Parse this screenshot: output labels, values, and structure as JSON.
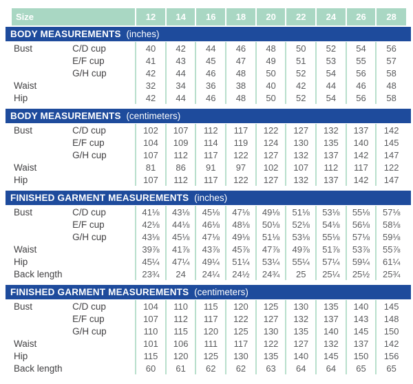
{
  "header": {
    "size_label": "Size",
    "sizes": [
      "12",
      "14",
      "16",
      "18",
      "20",
      "22",
      "24",
      "26",
      "28"
    ]
  },
  "sections": [
    {
      "title": "BODY MEASUREMENTS",
      "unit": "(inches)",
      "rows": [
        {
          "label": "Bust",
          "cup": "C/D cup",
          "values": [
            "40",
            "42",
            "44",
            "46",
            "48",
            "50",
            "52",
            "54",
            "56"
          ]
        },
        {
          "label": "",
          "cup": "E/F cup",
          "values": [
            "41",
            "43",
            "45",
            "47",
            "49",
            "51",
            "53",
            "55",
            "57"
          ]
        },
        {
          "label": "",
          "cup": "G/H cup",
          "values": [
            "42",
            "44",
            "46",
            "48",
            "50",
            "52",
            "54",
            "56",
            "58"
          ]
        },
        {
          "label": "Waist",
          "cup": "",
          "values": [
            "32",
            "34",
            "36",
            "38",
            "40",
            "42",
            "44",
            "46",
            "48"
          ]
        },
        {
          "label": "Hip",
          "cup": "",
          "values": [
            "42",
            "44",
            "46",
            "48",
            "50",
            "52",
            "54",
            "56",
            "58"
          ]
        }
      ]
    },
    {
      "title": "BODY MEASUREMENTS",
      "unit": "(centimeters)",
      "rows": [
        {
          "label": "Bust",
          "cup": "C/D cup",
          "values": [
            "102",
            "107",
            "112",
            "117",
            "122",
            "127",
            "132",
            "137",
            "142"
          ]
        },
        {
          "label": "",
          "cup": "E/F cup",
          "values": [
            "104",
            "109",
            "114",
            "119",
            "124",
            "130",
            "135",
            "140",
            "145"
          ]
        },
        {
          "label": "",
          "cup": "G/H cup",
          "values": [
            "107",
            "112",
            "117",
            "122",
            "127",
            "132",
            "137",
            "142",
            "147"
          ]
        },
        {
          "label": "Waist",
          "cup": "",
          "values": [
            "81",
            "86",
            "91",
            "97",
            "102",
            "107",
            "112",
            "117",
            "122"
          ]
        },
        {
          "label": "Hip",
          "cup": "",
          "values": [
            "107",
            "112",
            "117",
            "122",
            "127",
            "132",
            "137",
            "142",
            "147"
          ]
        }
      ]
    },
    {
      "title": "FINISHED GARMENT MEASUREMENTS",
      "unit": "(inches)",
      "rows": [
        {
          "label": "Bust",
          "cup": "C/D cup",
          "values": [
            "41⅛",
            "43⅛",
            "45⅛",
            "47⅛",
            "49⅛",
            "51⅛",
            "53⅛",
            "55⅛",
            "57⅛"
          ]
        },
        {
          "label": "",
          "cup": "E/F cup",
          "values": [
            "42⅛",
            "44⅛",
            "46⅛",
            "48⅛",
            "50⅛",
            "52⅛",
            "54⅛",
            "56⅛",
            "58⅛"
          ]
        },
        {
          "label": "",
          "cup": "G/H cup",
          "values": [
            "43⅛",
            "45⅛",
            "47⅛",
            "49⅛",
            "51⅛",
            "53⅛",
            "55⅛",
            "57⅛",
            "59⅛"
          ]
        },
        {
          "label": "Waist",
          "cup": "",
          "values": [
            "39⅞",
            "41⅞",
            "43⅞",
            "45⅞",
            "47⅞",
            "49⅞",
            "51⅞",
            "53⅞",
            "55⅞"
          ]
        },
        {
          "label": "Hip",
          "cup": "",
          "values": [
            "45¼",
            "47¼",
            "49¼",
            "51¼",
            "53¼",
            "55¼",
            "57¼",
            "59¼",
            "61¼"
          ]
        },
        {
          "label": "Back length",
          "cup": "",
          "values": [
            "23¾",
            "24",
            "24¼",
            "24½",
            "24¾",
            "25",
            "25¼",
            "25½",
            "25¾"
          ]
        }
      ]
    },
    {
      "title": "FINISHED GARMENT MEASUREMENTS",
      "unit": "(centimeters)",
      "rows": [
        {
          "label": "Bust",
          "cup": "C/D cup",
          "values": [
            "104",
            "110",
            "115",
            "120",
            "125",
            "130",
            "135",
            "140",
            "145"
          ]
        },
        {
          "label": "",
          "cup": "E/F cup",
          "values": [
            "107",
            "112",
            "117",
            "122",
            "127",
            "132",
            "137",
            "143",
            "148"
          ]
        },
        {
          "label": "",
          "cup": "G/H cup",
          "values": [
            "110",
            "115",
            "120",
            "125",
            "130",
            "135",
            "140",
            "145",
            "150"
          ]
        },
        {
          "label": "Waist",
          "cup": "",
          "values": [
            "101",
            "106",
            "111",
            "117",
            "122",
            "127",
            "132",
            "137",
            "142"
          ]
        },
        {
          "label": "Hip",
          "cup": "",
          "values": [
            "115",
            "120",
            "125",
            "130",
            "135",
            "140",
            "145",
            "150",
            "156"
          ]
        },
        {
          "label": "Back length",
          "cup": "",
          "values": [
            "60",
            "61",
            "62",
            "62",
            "63",
            "64",
            "64",
            "65",
            "65"
          ]
        }
      ]
    }
  ],
  "colors": {
    "teal_header_bg": "#a9d7c3",
    "blue_header_bg": "#1e4b9c",
    "column_divider": "#b8dfcc",
    "value_text": "#58595b",
    "label_text": "#414042"
  }
}
